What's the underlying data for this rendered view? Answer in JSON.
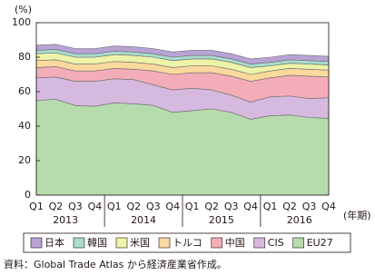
{
  "chart_data": {
    "type": "area",
    "stacked": true,
    "y_unit": "(%)",
    "x_unit": "(年期)",
    "categories": [
      "Q1",
      "Q2",
      "Q3",
      "Q4",
      "Q1",
      "Q2",
      "Q3",
      "Q4",
      "Q1",
      "Q2",
      "Q3",
      "Q4",
      "Q1",
      "Q2",
      "Q3",
      "Q4"
    ],
    "years": [
      "2013",
      "2014",
      "2015",
      "2016"
    ],
    "ylim": [
      0,
      100
    ],
    "yticks": [
      0,
      20,
      40,
      60,
      80,
      100
    ],
    "series": [
      {
        "name": "日本",
        "color": "#b9a3d6",
        "values": [
          3,
          3,
          3,
          3,
          3,
          3,
          3,
          3,
          3,
          3,
          3,
          3,
          3,
          3,
          3,
          3
        ]
      },
      {
        "name": "韓国",
        "color": "#a8dccf",
        "values": [
          2,
          2,
          2,
          2,
          2,
          2,
          2,
          2,
          2,
          2,
          2,
          2,
          2,
          2,
          2,
          2
        ]
      },
      {
        "name": "米国",
        "color": "#eef3a8",
        "values": [
          4,
          4,
          4,
          4,
          4,
          4,
          4,
          4,
          4,
          4,
          4,
          4,
          3,
          3,
          3,
          3
        ]
      },
      {
        "name": "トルコ",
        "color": "#fbd89d",
        "values": [
          4,
          4,
          4,
          4,
          4,
          4,
          4,
          4,
          4,
          4,
          4,
          4,
          4,
          4,
          4,
          4
        ]
      },
      {
        "name": "中国",
        "color": "#f3adb9",
        "values": [
          6,
          6,
          6,
          6,
          6,
          6,
          8,
          9,
          9,
          10,
          11,
          12,
          11,
          12,
          13,
          12
        ]
      },
      {
        "name": "CIS",
        "color": "#d6b9df",
        "values": [
          13,
          13,
          14,
          14.5,
          14,
          14,
          12,
          13,
          13,
          11,
          10,
          10,
          11,
          11,
          11,
          12
        ]
      },
      {
        "name": "EU27",
        "color": "#b6dcae",
        "values": [
          55,
          55.5,
          52,
          51.5,
          53.5,
          53,
          52,
          48,
          49,
          50,
          48,
          44,
          46,
          46.5,
          45,
          44.5
        ]
      }
    ],
    "source": "資料：Global Trade Atlas から経済産業省作成。"
  }
}
